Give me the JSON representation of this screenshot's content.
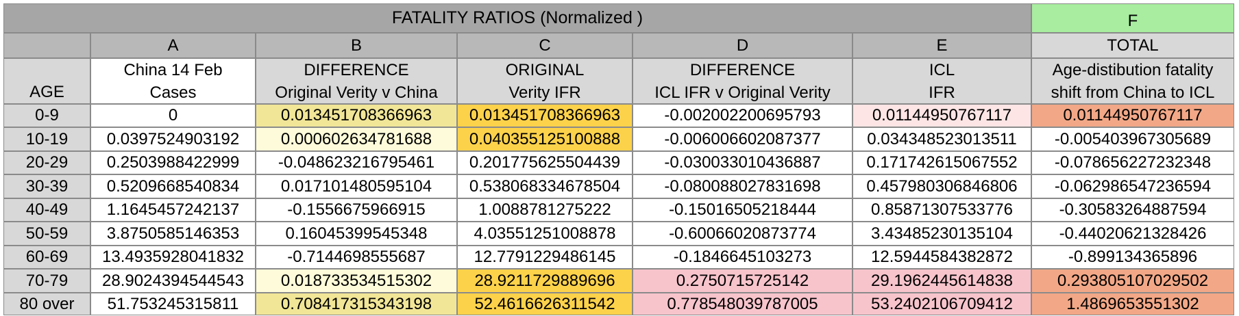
{
  "title": "FATALITY RATIOS  (Normalized )",
  "f_marker": "F",
  "column_letters": [
    "A",
    "B",
    "C",
    "D",
    "E"
  ],
  "total_letter_label": "TOTAL",
  "age_header": "AGE",
  "headers": [
    [
      "China 14 Feb",
      "Cases"
    ],
    [
      "DIFFERENCE",
      "Original Verity v China"
    ],
    [
      "ORIGINAL",
      "Verity IFR"
    ],
    [
      "DIFFERENCE",
      "ICL IFR v Original Verity"
    ],
    [
      "ICL",
      "IFR"
    ],
    [
      "Age-distibution fatality",
      "shift from China to ICL"
    ]
  ],
  "rows": [
    [
      "0-9",
      "0",
      "0.013451708366963",
      "0.013451708366963",
      "-0.002002200695793",
      "0.01144950767117",
      "0.01144950767117"
    ],
    [
      "10-19",
      "0.0397524903192",
      "0.000602634781688",
      "0.040355125100888",
      "-0.006006602087377",
      "0.034348523013511",
      "-0.005403967305689"
    ],
    [
      "20-29",
      "0.2503988422999",
      "-0.048623216795461",
      "0.201775625504439",
      "-0.030033010436887",
      "0.171742615067552",
      "-0.078656227232348"
    ],
    [
      "30-39",
      "0.5209668540834",
      "0.017101480595104",
      "0.538068334678504",
      "-0.080088027831698",
      "0.457980306846806",
      "-0.062986547236594"
    ],
    [
      "40-49",
      "1.1645457242137",
      "-0.1556675966915",
      "1.0088781275222",
      "-0.15016505218444",
      "0.85871307533776",
      "-0.30583264887594"
    ],
    [
      "50-59",
      "3.8750585146353",
      "0.16045399545348",
      "4.03551251008878",
      "-0.60066020873774",
      "3.43485230135104",
      "-0.44020621328426"
    ],
    [
      "60-69",
      "13.4935928041832",
      "-0.7144698555687",
      "12.7791229486145",
      "-0.1846645103273",
      "12.5944584382872",
      "-0.899134365896"
    ],
    [
      "70-79",
      "28.9024394544543",
      "0.018733534515302",
      "28.9211729889696",
      "0.2750715725142",
      "29.1962445614838",
      "0.293805107029502"
    ],
    [
      "80 over",
      "51.753245315811",
      "0.708417315343198",
      "52.4616626311542",
      "0.778548039787005",
      "53.2402106709412",
      "1.4869653551302"
    ]
  ],
  "fills": [
    [
      "#ffffff",
      "#ffffff",
      "#f1e697",
      "#fdd24b",
      "#ffffff",
      "#fde5e5",
      "#f2a887"
    ],
    [
      "#ffffff",
      "#ffffff",
      "#fdfbd9",
      "#fdd24b",
      "#ffffff",
      "#ffffff",
      "#ffffff"
    ],
    [
      "#ffffff",
      "#ffffff",
      "#ffffff",
      "#ffffff",
      "#ffffff",
      "#ffffff",
      "#ffffff"
    ],
    [
      "#ffffff",
      "#ffffff",
      "#ffffff",
      "#ffffff",
      "#ffffff",
      "#ffffff",
      "#ffffff"
    ],
    [
      "#ffffff",
      "#ffffff",
      "#ffffff",
      "#ffffff",
      "#ffffff",
      "#ffffff",
      "#ffffff"
    ],
    [
      "#ffffff",
      "#ffffff",
      "#ffffff",
      "#ffffff",
      "#ffffff",
      "#ffffff",
      "#ffffff"
    ],
    [
      "#ffffff",
      "#ffffff",
      "#ffffff",
      "#ffffff",
      "#ffffff",
      "#ffffff",
      "#ffffff"
    ],
    [
      "#ffffff",
      "#ffffff",
      "#fdfbd9",
      "#fdd24b",
      "#f7c4cc",
      "#f7c4cc",
      "#f2a887"
    ],
    [
      "#ffffff",
      "#ffffff",
      "#f1e697",
      "#fdd24b",
      "#f7c4cc",
      "#f7c4cc",
      "#f2a887"
    ]
  ],
  "colors": {
    "title_bar": "#a6a6a6",
    "letter_bar": "#b8b8b8",
    "header_fill": "#d8d8d8",
    "age_fill": "#d8d8d8",
    "f_marker_fill": "#a8eda0",
    "grid_line": "#8a8a8a"
  }
}
